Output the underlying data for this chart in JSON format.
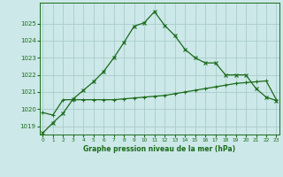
{
  "title": "Graphe pression niveau de la mer (hPa)",
  "bg_color": "#cce8e8",
  "grid_color": "#aacccc",
  "line_color": "#1a6b1a",
  "x_values": [
    0,
    1,
    2,
    3,
    4,
    5,
    6,
    7,
    8,
    9,
    10,
    11,
    12,
    13,
    14,
    15,
    16,
    17,
    18,
    19,
    20,
    21,
    22,
    23
  ],
  "series1": [
    1018.6,
    1019.2,
    1019.75,
    1020.6,
    1021.1,
    1021.6,
    1022.2,
    1023.0,
    1023.9,
    1024.85,
    1025.05,
    1025.7,
    1024.9,
    1024.3,
    1023.5,
    1023.0,
    1022.7,
    1022.7,
    1022.0,
    1022.0,
    1022.0,
    1021.2,
    1020.7,
    1020.5
  ],
  "series2": [
    1019.8,
    1019.65,
    1020.55,
    1020.55,
    1020.55,
    1020.55,
    1020.55,
    1020.55,
    1020.6,
    1020.65,
    1020.7,
    1020.75,
    1020.8,
    1020.9,
    1021.0,
    1021.1,
    1021.2,
    1021.3,
    1021.4,
    1021.5,
    1021.55,
    1021.6,
    1021.65,
    1020.55
  ],
  "ylim": [
    1018.5,
    1026.2
  ],
  "yticks": [
    1019,
    1020,
    1021,
    1022,
    1023,
    1024,
    1025
  ],
  "xlim": [
    -0.3,
    23.3
  ],
  "xticks": [
    0,
    1,
    2,
    3,
    4,
    5,
    6,
    7,
    8,
    9,
    10,
    11,
    12,
    13,
    14,
    15,
    16,
    17,
    18,
    19,
    20,
    21,
    22,
    23
  ]
}
